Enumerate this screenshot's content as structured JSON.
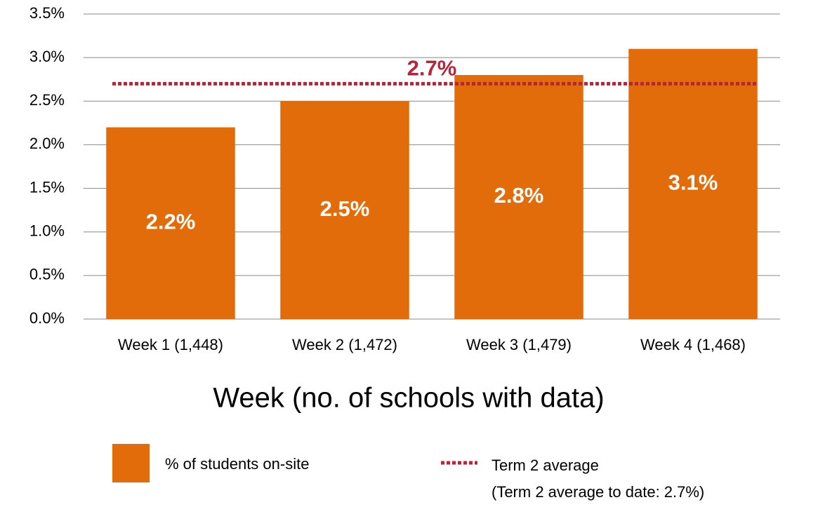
{
  "chart_data": {
    "type": "bar",
    "x_label": "Week (no. of schools with data)",
    "categories": [
      "Week 1 (1,448)",
      "Week 2 (1,472)",
      "Week 3 (1,479)",
      "Week 4 (1,468)"
    ],
    "series": [
      {
        "name": "% of students on-site",
        "color": "#e36c0a",
        "values": [
          2.2,
          2.5,
          2.8,
          3.1
        ],
        "value_labels": [
          "2.2%",
          "2.5%",
          "2.8%",
          "3.1%"
        ]
      }
    ],
    "reference_line": {
      "name": "Term 2 average",
      "note": "(Term 2 average to date: 2.7%)",
      "value": 2.7,
      "value_label": "2.7%",
      "color": "#b5263a"
    },
    "ylim": [
      0,
      3.5
    ],
    "yticks": [
      {
        "value": 0,
        "label": "0.0%"
      },
      {
        "value": 0.5,
        "label": "0.5%"
      },
      {
        "value": 1,
        "label": "1.0%"
      },
      {
        "value": 1.5,
        "label": "1.5%"
      },
      {
        "value": 2,
        "label": "2.0%"
      },
      {
        "value": 2.5,
        "label": "2.5%"
      },
      {
        "value": 3,
        "label": "3.0%"
      },
      {
        "value": 3.5,
        "label": "3.5%"
      }
    ],
    "grid": true
  }
}
